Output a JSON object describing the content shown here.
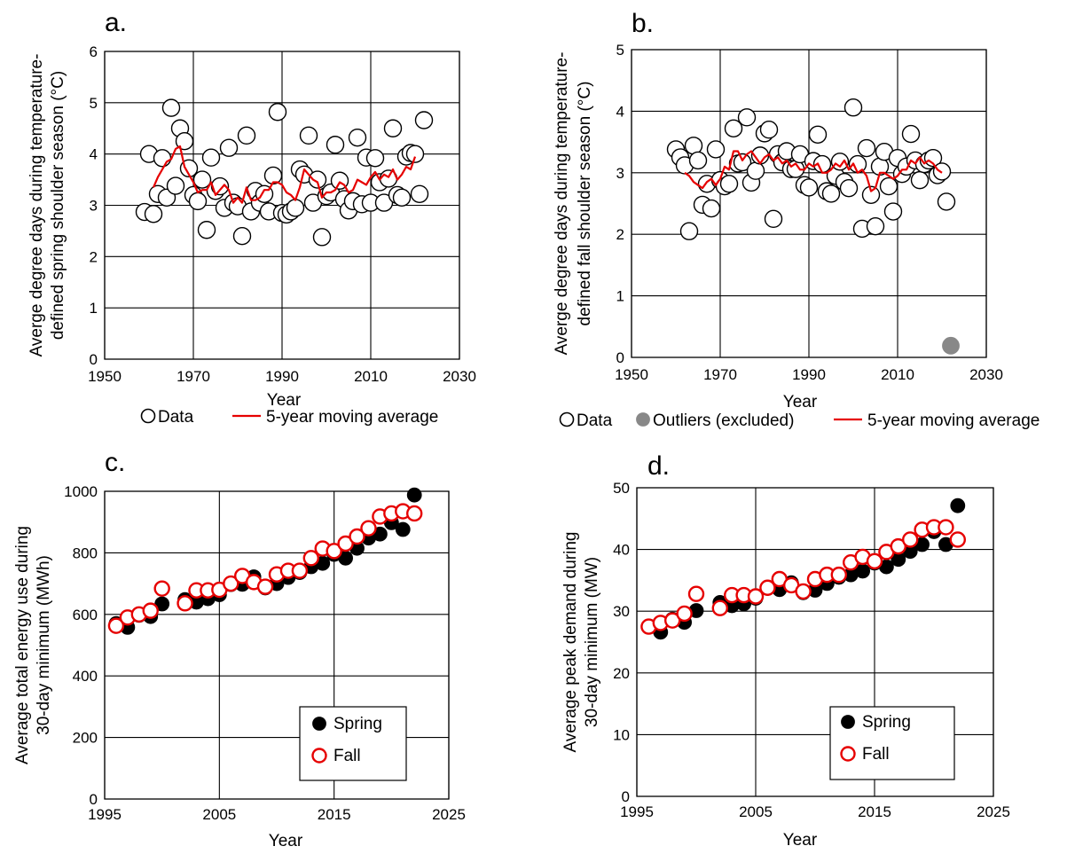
{
  "chart_data": [
    {
      "type": "scatter",
      "panel_label": "a.",
      "xlabel": "Year",
      "ylabel": "Averge degree days during temperature-defined spring shoulder season (°C)",
      "ylabel_lines": [
        "Averge degree days during temperature-",
        "defined spring shoulder season (°C)"
      ],
      "xlim": [
        1950,
        2030
      ],
      "ylim": [
        0,
        6
      ],
      "xticks": [
        1950,
        1970,
        1990,
        2010,
        2030
      ],
      "yticks": [
        0,
        1,
        2,
        3,
        4,
        5,
        6
      ],
      "grid": true,
      "legend_position": "bottom",
      "series": [
        {
          "name": "Data",
          "kind": "open-circle",
          "color": "#000000",
          "x": [
            1959,
            1960,
            1961,
            1962,
            1963,
            1964,
            1965,
            1966,
            1967,
            1968,
            1969,
            1970,
            1971,
            1972,
            1973,
            1974,
            1975,
            1976,
            1977,
            1978,
            1979,
            1980,
            1981,
            1982,
            1983,
            1984,
            1985,
            1986,
            1987,
            1988,
            1989,
            1990,
            1991,
            1992,
            1993,
            1994,
            1995,
            1996,
            1997,
            1998,
            1999,
            2000,
            2001,
            2002,
            2003,
            2004,
            2005,
            2006,
            2007,
            2008,
            2009,
            2010,
            2011,
            2012,
            2013,
            2014,
            2015,
            2016,
            2017,
            2018,
            2019,
            2020,
            2021,
            2022
          ],
          "y": [
            2.87,
            4.0,
            2.83,
            3.22,
            3.92,
            3.15,
            4.9,
            3.38,
            4.5,
            4.25,
            3.72,
            3.2,
            3.08,
            3.5,
            2.52,
            3.93,
            3.28,
            3.37,
            2.95,
            4.12,
            3.05,
            2.98,
            2.4,
            4.36,
            2.88,
            3.28,
            3.05,
            3.22,
            2.88,
            3.58,
            4.82,
            2.85,
            2.82,
            2.88,
            2.95,
            3.7,
            3.6,
            4.36,
            3.05,
            3.5,
            2.38,
            3.18,
            3.25,
            4.18,
            3.48,
            3.12,
            2.9,
            3.08,
            4.32,
            3.02,
            3.93,
            3.05,
            3.92,
            3.45,
            3.05,
            3.52,
            4.5,
            3.2,
            3.15,
            3.95,
            4.02,
            4.0,
            3.22,
            4.66
          ]
        },
        {
          "name": "5-year moving average",
          "kind": "line",
          "color": "#e60000",
          "x": [
            1961,
            1962,
            1963,
            1964,
            1965,
            1966,
            1967,
            1968,
            1969,
            1970,
            1971,
            1972,
            1973,
            1974,
            1975,
            1976,
            1977,
            1978,
            1979,
            1980,
            1981,
            1982,
            1983,
            1984,
            1985,
            1986,
            1987,
            1988,
            1989,
            1990,
            1991,
            1992,
            1993,
            1994,
            1995,
            1996,
            1997,
            1998,
            1999,
            2000,
            2001,
            2002,
            2003,
            2004,
            2005,
            2006,
            2007,
            2008,
            2009,
            2010,
            2011,
            2012,
            2013,
            2014,
            2015,
            2016,
            2017,
            2018,
            2019,
            2020
          ],
          "y": [
            3.35,
            3.55,
            3.7,
            3.85,
            3.9,
            4.1,
            4.15,
            3.75,
            3.6,
            3.45,
            3.25,
            3.3,
            3.3,
            3.45,
            3.2,
            3.3,
            3.4,
            3.3,
            3.05,
            3.15,
            3.05,
            3.35,
            3.1,
            3.1,
            3.15,
            3.3,
            3.3,
            3.45,
            3.45,
            3.4,
            3.25,
            3.2,
            3.1,
            3.35,
            3.7,
            3.6,
            3.5,
            3.45,
            3.15,
            3.25,
            3.25,
            3.3,
            3.45,
            3.4,
            3.25,
            3.3,
            3.5,
            3.45,
            3.4,
            3.55,
            3.65,
            3.5,
            3.6,
            3.55,
            3.7,
            3.5,
            3.6,
            3.75,
            3.7,
            3.95
          ]
        }
      ]
    },
    {
      "type": "scatter",
      "panel_label": "b.",
      "xlabel": "Year",
      "ylabel": "Averge degree days during temperature-defined fall shoulder season (°C)",
      "ylabel_lines": [
        "Averge degree days during temperature-",
        "defined fall shoulder season (°C)"
      ],
      "xlim": [
        1950,
        2030
      ],
      "ylim": [
        0,
        5
      ],
      "xticks": [
        1950,
        1970,
        1990,
        2010,
        2030
      ],
      "yticks": [
        0,
        1,
        2,
        3,
        4,
        5
      ],
      "grid": true,
      "legend_position": "bottom",
      "series": [
        {
          "name": "Data",
          "kind": "open-circle",
          "color": "#000000",
          "x": [
            1960,
            1961,
            1962,
            1963,
            1964,
            1965,
            1966,
            1967,
            1968,
            1969,
            1970,
            1971,
            1972,
            1973,
            1974,
            1975,
            1976,
            1977,
            1978,
            1979,
            1980,
            1981,
            1982,
            1983,
            1984,
            1985,
            1986,
            1987,
            1988,
            1989,
            1990,
            1991,
            1992,
            1993,
            1994,
            1995,
            1996,
            1997,
            1998,
            1999,
            2000,
            2001,
            2002,
            2003,
            2004,
            2005,
            2006,
            2007,
            2008,
            2009,
            2010,
            2011,
            2012,
            2013,
            2014,
            2015,
            2016,
            2017,
            2018,
            2019,
            2020,
            2021
          ],
          "y": [
            3.38,
            3.25,
            3.12,
            2.05,
            3.44,
            3.2,
            2.48,
            2.82,
            2.42,
            3.38,
            2.88,
            2.78,
            2.82,
            3.72,
            3.15,
            3.17,
            3.9,
            2.84,
            3.03,
            3.28,
            3.64,
            3.7,
            2.25,
            3.3,
            3.17,
            3.35,
            3.06,
            3.06,
            3.3,
            2.8,
            2.76,
            3.19,
            3.62,
            3.14,
            2.7,
            2.66,
            2.95,
            3.18,
            2.85,
            2.75,
            4.06,
            3.14,
            2.09,
            3.4,
            2.64,
            2.13,
            3.1,
            3.34,
            2.78,
            2.37,
            3.24,
            2.98,
            3.1,
            3.63,
            3.2,
            2.88,
            3.14,
            3.2,
            3.24,
            2.96,
            3.02,
            2.53
          ]
        },
        {
          "name": "Outliers (excluded)",
          "kind": "filled-circle",
          "color": "#888888",
          "x": [
            2022
          ],
          "y": [
            0.19
          ]
        },
        {
          "name": "5-year moving average",
          "kind": "line",
          "color": "#e60000",
          "x": [
            1962,
            1963,
            1964,
            1965,
            1966,
            1967,
            1968,
            1969,
            1970,
            1971,
            1972,
            1973,
            1974,
            1975,
            1976,
            1977,
            1978,
            1979,
            1980,
            1981,
            1982,
            1983,
            1984,
            1985,
            1986,
            1987,
            1988,
            1989,
            1990,
            1991,
            1992,
            1993,
            1994,
            1995,
            1996,
            1997,
            1998,
            1999,
            2000,
            2001,
            2002,
            2003,
            2004,
            2005,
            2006,
            2007,
            2008,
            2009,
            2010,
            2011,
            2012,
            2013,
            2014,
            2015,
            2016,
            2017,
            2018,
            2019,
            2020
          ],
          "y": [
            3.0,
            2.95,
            2.85,
            2.8,
            2.75,
            2.85,
            2.9,
            2.8,
            2.9,
            3.1,
            3.05,
            3.35,
            3.35,
            3.2,
            3.3,
            3.35,
            3.25,
            3.15,
            3.25,
            3.3,
            3.2,
            3.25,
            3.15,
            3.2,
            3.1,
            3.15,
            3.05,
            3.05,
            3.15,
            3.1,
            3.15,
            3.0,
            3.0,
            3.05,
            3.15,
            3.1,
            3.2,
            3.05,
            3.15,
            3.0,
            3.05,
            2.95,
            2.7,
            2.75,
            3.0,
            3.0,
            2.95,
            2.9,
            2.95,
            3.05,
            3.05,
            3.2,
            3.15,
            3.25,
            3.15,
            3.2,
            3.15,
            3.05,
            3.0
          ]
        }
      ]
    },
    {
      "type": "scatter",
      "panel_label": "c.",
      "xlabel": "Year",
      "ylabel": "Average total energy use during 30-day minimum (MWh)",
      "ylabel_lines": [
        "Average total energy use during",
        "30-day minimum (MWh)"
      ],
      "xlim": [
        1995,
        2025
      ],
      "ylim": [
        0,
        1000
      ],
      "xticks": [
        1995,
        2005,
        2015,
        2025
      ],
      "yticks": [
        0,
        200,
        400,
        600,
        800,
        1000
      ],
      "grid": true,
      "legend_position": "bottom-right",
      "series": [
        {
          "name": "Spring",
          "kind": "filled-circle",
          "color": "#000000",
          "x": [
            1996,
            1997,
            1998,
            1999,
            2000,
            2002,
            2003,
            2004,
            2005,
            2006,
            2007,
            2008,
            2009,
            2010,
            2011,
            2012,
            2013,
            2014,
            2015,
            2016,
            2017,
            2018,
            2019,
            2020,
            2021,
            2022
          ],
          "y": [
            570,
            558,
            597,
            593,
            634,
            648,
            640,
            651,
            664,
            697,
            698,
            722,
            686,
            700,
            720,
            736,
            755,
            766,
            795,
            783,
            815,
            848,
            861,
            898,
            876,
            988
          ]
        },
        {
          "name": "Fall",
          "kind": "open-circle",
          "color": "#e60000",
          "x": [
            1996,
            1997,
            1998,
            1999,
            2000,
            2002,
            2003,
            2004,
            2005,
            2006,
            2007,
            2008,
            2009,
            2010,
            2011,
            2012,
            2013,
            2014,
            2015,
            2016,
            2017,
            2018,
            2019,
            2020,
            2021,
            2022
          ],
          "y": [
            563,
            590,
            600,
            612,
            684,
            636,
            678,
            678,
            680,
            700,
            725,
            705,
            690,
            730,
            742,
            742,
            783,
            814,
            806,
            830,
            853,
            880,
            918,
            928,
            935,
            928
          ]
        }
      ]
    },
    {
      "type": "scatter",
      "panel_label": "d.",
      "xlabel": "Year",
      "ylabel": "Average peak demand during 30-day minimum (MW)",
      "ylabel_lines": [
        "Average peak demand during",
        "30-day minimum (MW)"
      ],
      "xlim": [
        1995,
        2025
      ],
      "ylim": [
        0,
        50
      ],
      "xticks": [
        1995,
        2005,
        2015,
        2025
      ],
      "yticks": [
        0,
        10,
        20,
        30,
        40,
        50
      ],
      "grid": true,
      "legend_position": "bottom-right",
      "series": [
        {
          "name": "Spring",
          "kind": "filled-circle",
          "color": "#000000",
          "x": [
            1996,
            1997,
            1998,
            1999,
            2000,
            2002,
            2003,
            2004,
            2005,
            2006,
            2007,
            2008,
            2009,
            2010,
            2011,
            2012,
            2013,
            2014,
            2015,
            2016,
            2017,
            2018,
            2019,
            2020,
            2021,
            2022
          ],
          "y": [
            27.5,
            26.6,
            28.7,
            28.2,
            30.1,
            31.4,
            30.9,
            31.2,
            32.1,
            33.7,
            33.5,
            34.6,
            33.0,
            33.4,
            34.5,
            35.5,
            35.9,
            36.5,
            37.8,
            37.2,
            38.4,
            39.7,
            40.8,
            42.9,
            40.8,
            47.1
          ]
        },
        {
          "name": "Fall",
          "kind": "open-circle",
          "color": "#e60000",
          "x": [
            1996,
            1997,
            1998,
            1999,
            2000,
            2002,
            2003,
            2004,
            2005,
            2006,
            2007,
            2008,
            2009,
            2010,
            2011,
            2012,
            2013,
            2014,
            2015,
            2016,
            2017,
            2018,
            2019,
            2020,
            2021,
            2022
          ],
          "y": [
            27.5,
            28.1,
            28.5,
            29.6,
            32.8,
            30.5,
            32.6,
            32.6,
            32.4,
            33.8,
            35.2,
            34.2,
            33.2,
            35.2,
            35.9,
            35.9,
            37.9,
            38.8,
            38.1,
            39.6,
            40.5,
            41.6,
            43.2,
            43.6,
            43.6,
            41.6
          ]
        }
      ]
    }
  ]
}
